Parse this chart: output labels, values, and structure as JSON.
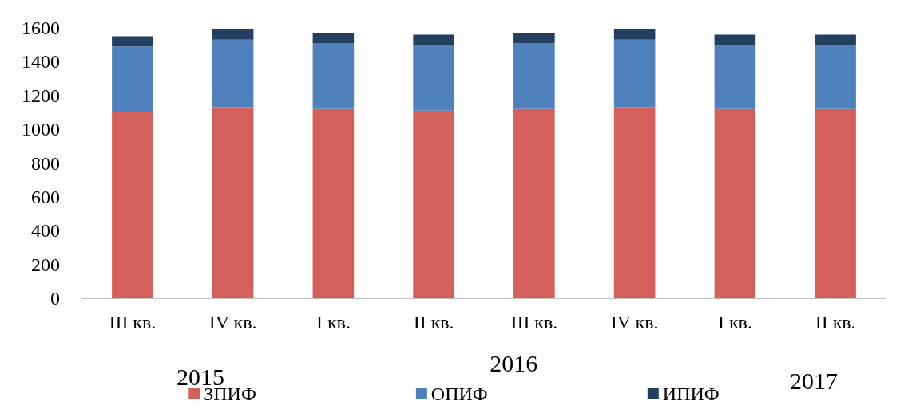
{
  "chart_data": {
    "type": "bar",
    "stacked": true,
    "categories": [
      "III кв.",
      "IV кв.",
      "I кв.",
      "II кв.",
      "III кв.",
      "IV кв.",
      "I кв.",
      "II кв."
    ],
    "series": [
      {
        "name": "ЗПИФ",
        "color": "#d4605c",
        "values": [
          1100,
          1130,
          1120,
          1110,
          1120,
          1130,
          1120,
          1120
        ]
      },
      {
        "name": "ОПИФ",
        "color": "#4f81bd",
        "values": [
          390,
          400,
          390,
          390,
          390,
          400,
          380,
          380
        ]
      },
      {
        "name": "ИПИФ",
        "color": "#243f60",
        "values": [
          60,
          60,
          60,
          60,
          60,
          60,
          60,
          60
        ]
      }
    ],
    "ylim": [
      0,
      1600
    ],
    "yticks": [
      0,
      200,
      400,
      600,
      800,
      1000,
      1200,
      1400,
      1600
    ],
    "grid": false,
    "legend": "bottom",
    "annotations": [
      "2015",
      "2016",
      "2017"
    ]
  }
}
